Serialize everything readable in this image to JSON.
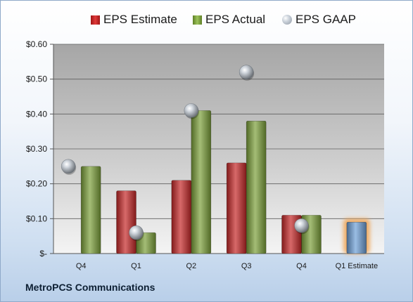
{
  "company": "MetroPCS Communications",
  "legend": [
    {
      "label": "EPS Estimate",
      "swatch": "red"
    },
    {
      "label": "EPS Actual",
      "swatch": "green"
    },
    {
      "label": "EPS GAAP",
      "swatch": "gray"
    }
  ],
  "colors": {
    "estimate": "#c62828",
    "actual": "#7da13b",
    "gaap": "#a9b1ba",
    "forecast": "#6fa0d8",
    "forecast_glow": "#f0a04b"
  },
  "chart_data": {
    "type": "bar",
    "categories": [
      "Q4",
      "Q1",
      "Q2",
      "Q3",
      "Q4",
      "Q1 Estimate"
    ],
    "series": [
      {
        "name": "EPS Estimate",
        "values": [
          null,
          0.18,
          0.21,
          0.26,
          0.11,
          null
        ]
      },
      {
        "name": "EPS Actual",
        "values": [
          0.25,
          0.06,
          0.41,
          0.38,
          0.11,
          null
        ]
      },
      {
        "name": "EPS GAAP",
        "marker": "bubble",
        "values": [
          0.25,
          0.06,
          0.41,
          0.52,
          0.08,
          null
        ]
      }
    ],
    "forecast": {
      "category": "Q1 Estimate",
      "value": 0.09
    },
    "ylim": [
      0,
      0.6
    ],
    "yticks": [
      {
        "value": 0,
        "label": "$-"
      },
      {
        "value": 0.1,
        "label": "$0.10"
      },
      {
        "value": 0.2,
        "label": "$0.20"
      },
      {
        "value": 0.3,
        "label": "$0.30"
      },
      {
        "value": 0.4,
        "label": "$0.40"
      },
      {
        "value": 0.5,
        "label": "$0.50"
      },
      {
        "value": 0.6,
        "label": "$0.60"
      }
    ],
    "grid": true
  }
}
